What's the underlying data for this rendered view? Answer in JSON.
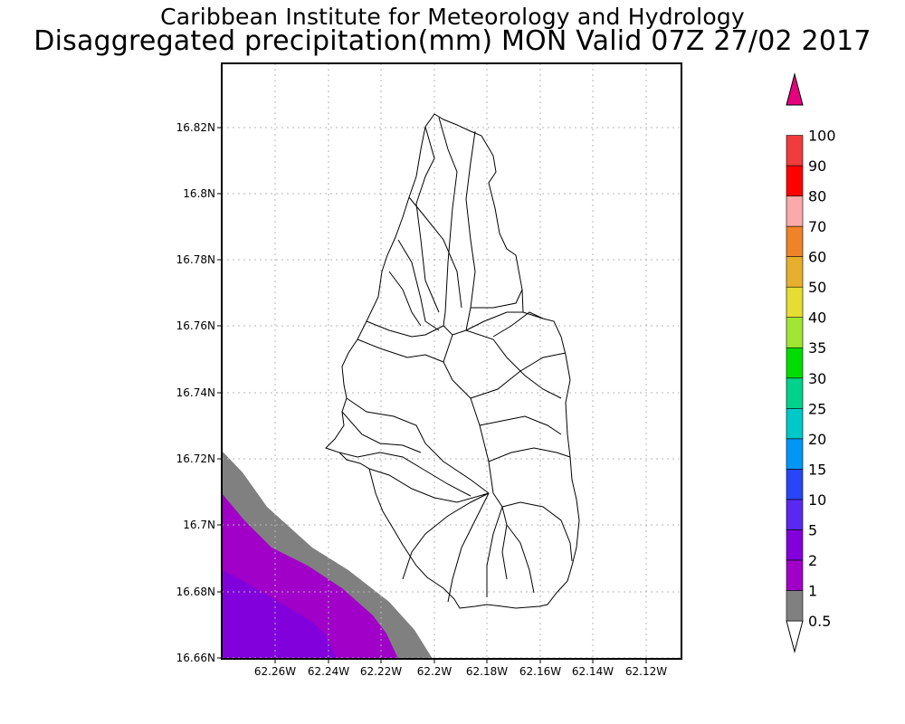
{
  "title": {
    "line1": "Caribbean Institute for Meteorology and Hydrology",
    "line2": "Disaggregated precipitation(mm) MON Valid 07Z 27/02 2017"
  },
  "axes": {
    "lat_ticks": [
      "16.82N",
      "16.8N",
      "16.78N",
      "16.76N",
      "16.74N",
      "16.72N",
      "16.7N",
      "16.68N",
      "16.66N"
    ],
    "lon_ticks": [
      "62.26W",
      "62.24W",
      "62.22W",
      "62.2W",
      "62.18W",
      "62.16W",
      "62.14W",
      "62.12W"
    ]
  },
  "colorbar": {
    "labels": [
      "0.5",
      "1",
      "2",
      "5",
      "10",
      "15",
      "20",
      "25",
      "30",
      "35",
      "40",
      "50",
      "60",
      "70",
      "80",
      "90",
      "100"
    ],
    "colors": [
      "#808080",
      "#a000c8",
      "#8200dc",
      "#5a28f0",
      "#2846f5",
      "#0096f5",
      "#00c8c8",
      "#00d28c",
      "#00dc00",
      "#a0e632",
      "#e6dc32",
      "#e6af2d",
      "#f08228",
      "#faaaaa",
      "#ff0000",
      "#f03c3c",
      "#e6007d"
    ]
  },
  "colors": {
    "grey_shade": "#808080",
    "purple_band": "#a000c8",
    "violet_band": "#8200dc"
  }
}
